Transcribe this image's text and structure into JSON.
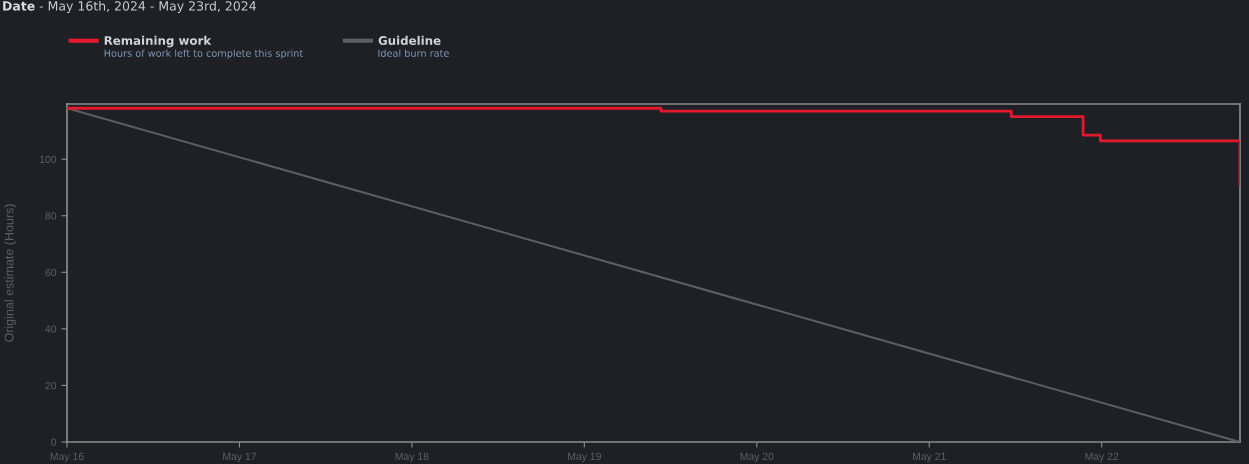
{
  "chart_data": {
    "type": "line",
    "title": "Date - May 16th, 2024 - May 23rd, 2024",
    "ylabel": "Original estimate (Hours)",
    "series": [
      {
        "name": "Remaining work",
        "type": "step",
        "color": "#e3182d",
        "x": [
          "2024-05-16T00:00",
          "2024-05-19T10:40",
          "2024-05-21T11:25",
          "2024-05-21T21:25",
          "2024-05-21T23:50",
          "2024-05-22T19:15"
        ],
        "values": [
          118,
          117,
          115,
          108.5,
          106.5,
          91
        ]
      },
      {
        "name": "Guideline",
        "color": "#5c5e61",
        "x": [
          "2024-05-16T00:00",
          "2024-05-22T19:15"
        ],
        "values": [
          118,
          0
        ]
      }
    ],
    "annotations": [
      "Hours of work left to complete this sprint",
      "Ideal burn rate"
    ],
    "xlim": [
      "2024-05-16T00:00",
      "2024-05-22T19:15"
    ],
    "xticks": [
      {
        "value": "2024-05-16",
        "label": "May 16"
      },
      {
        "value": "2024-05-17",
        "label": "May 17"
      },
      {
        "value": "2024-05-18",
        "label": "May 18"
      },
      {
        "value": "2024-05-19",
        "label": "May 19"
      },
      {
        "value": "2024-05-20",
        "label": "May 20"
      },
      {
        "value": "2024-05-21",
        "label": "May 21"
      },
      {
        "value": "2024-05-22",
        "label": "May 22"
      }
    ],
    "ylim": [
      0,
      119.5
    ],
    "yticks": [
      0,
      20,
      40,
      60,
      80,
      100
    ],
    "legend": "top left",
    "grid": false,
    "line_style": "solid"
  }
}
